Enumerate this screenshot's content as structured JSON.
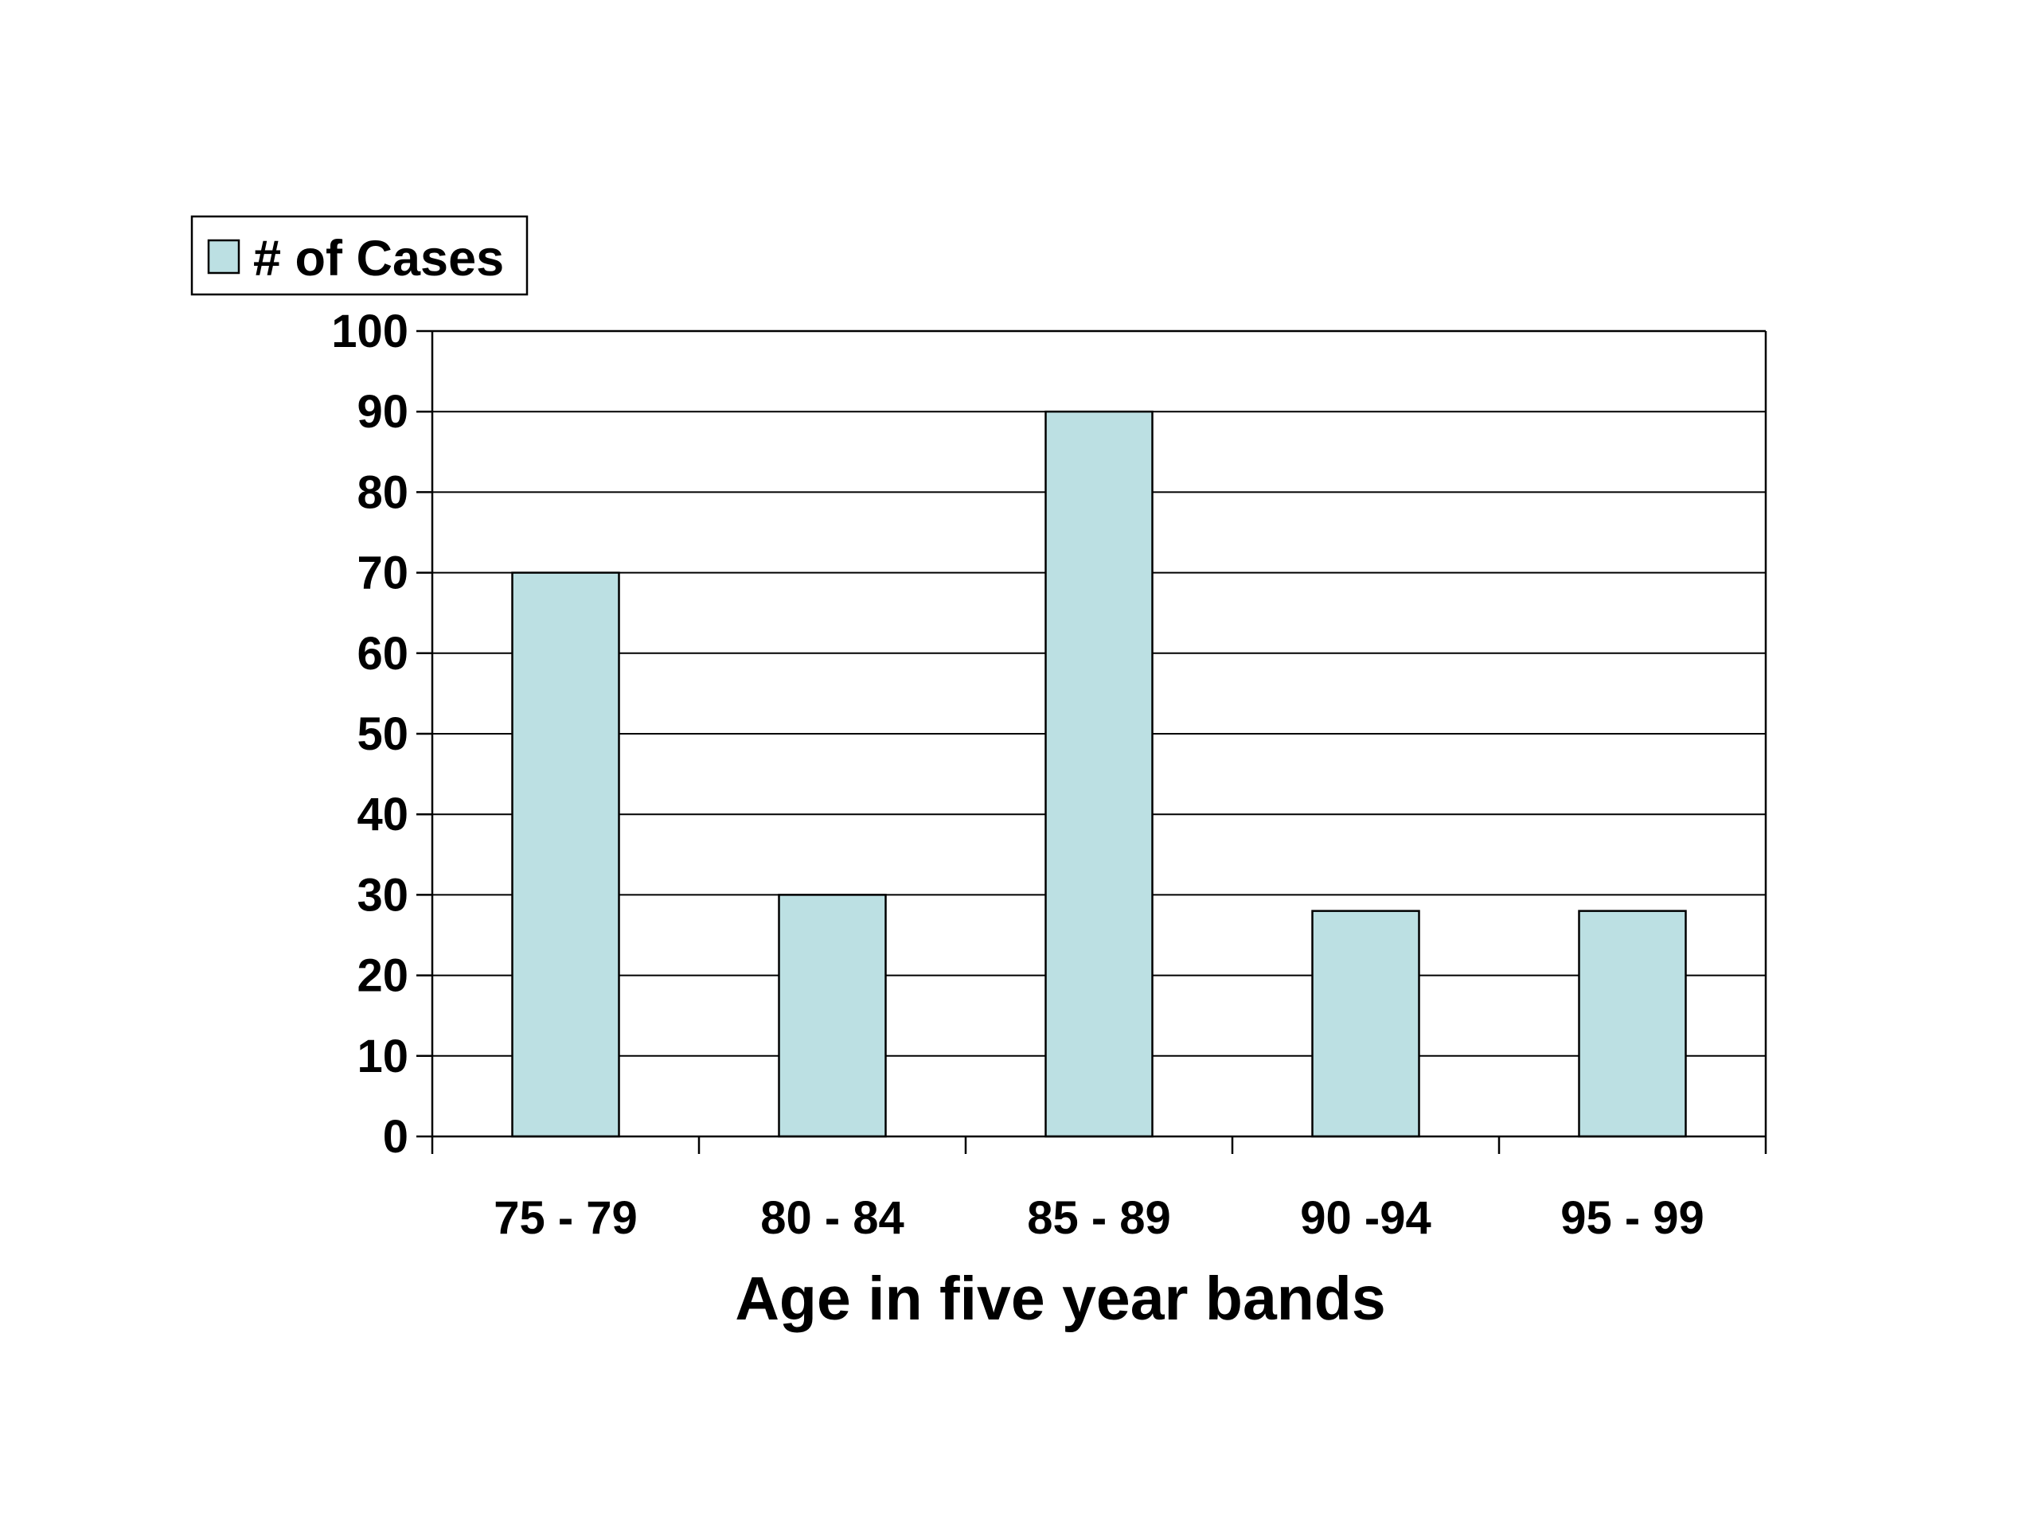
{
  "chart_data": {
    "type": "bar",
    "categories": [
      "75 - 79",
      "80 - 84",
      "85 - 89",
      "90 -94",
      "95 - 99"
    ],
    "series": [
      {
        "name": "# of Cases",
        "values": [
          70,
          30,
          90,
          28,
          28
        ]
      }
    ],
    "xlabel": "Age in five year bands",
    "ylabel": "",
    "ylim": [
      0,
      100
    ],
    "yticks": [
      0,
      10,
      20,
      30,
      40,
      50,
      60,
      70,
      80,
      90,
      100
    ],
    "grid": true,
    "legend": "top-left",
    "colors": {
      "bar_fill": "#bce0e3",
      "bar_stroke": "#000000",
      "grid": "#000000"
    }
  }
}
